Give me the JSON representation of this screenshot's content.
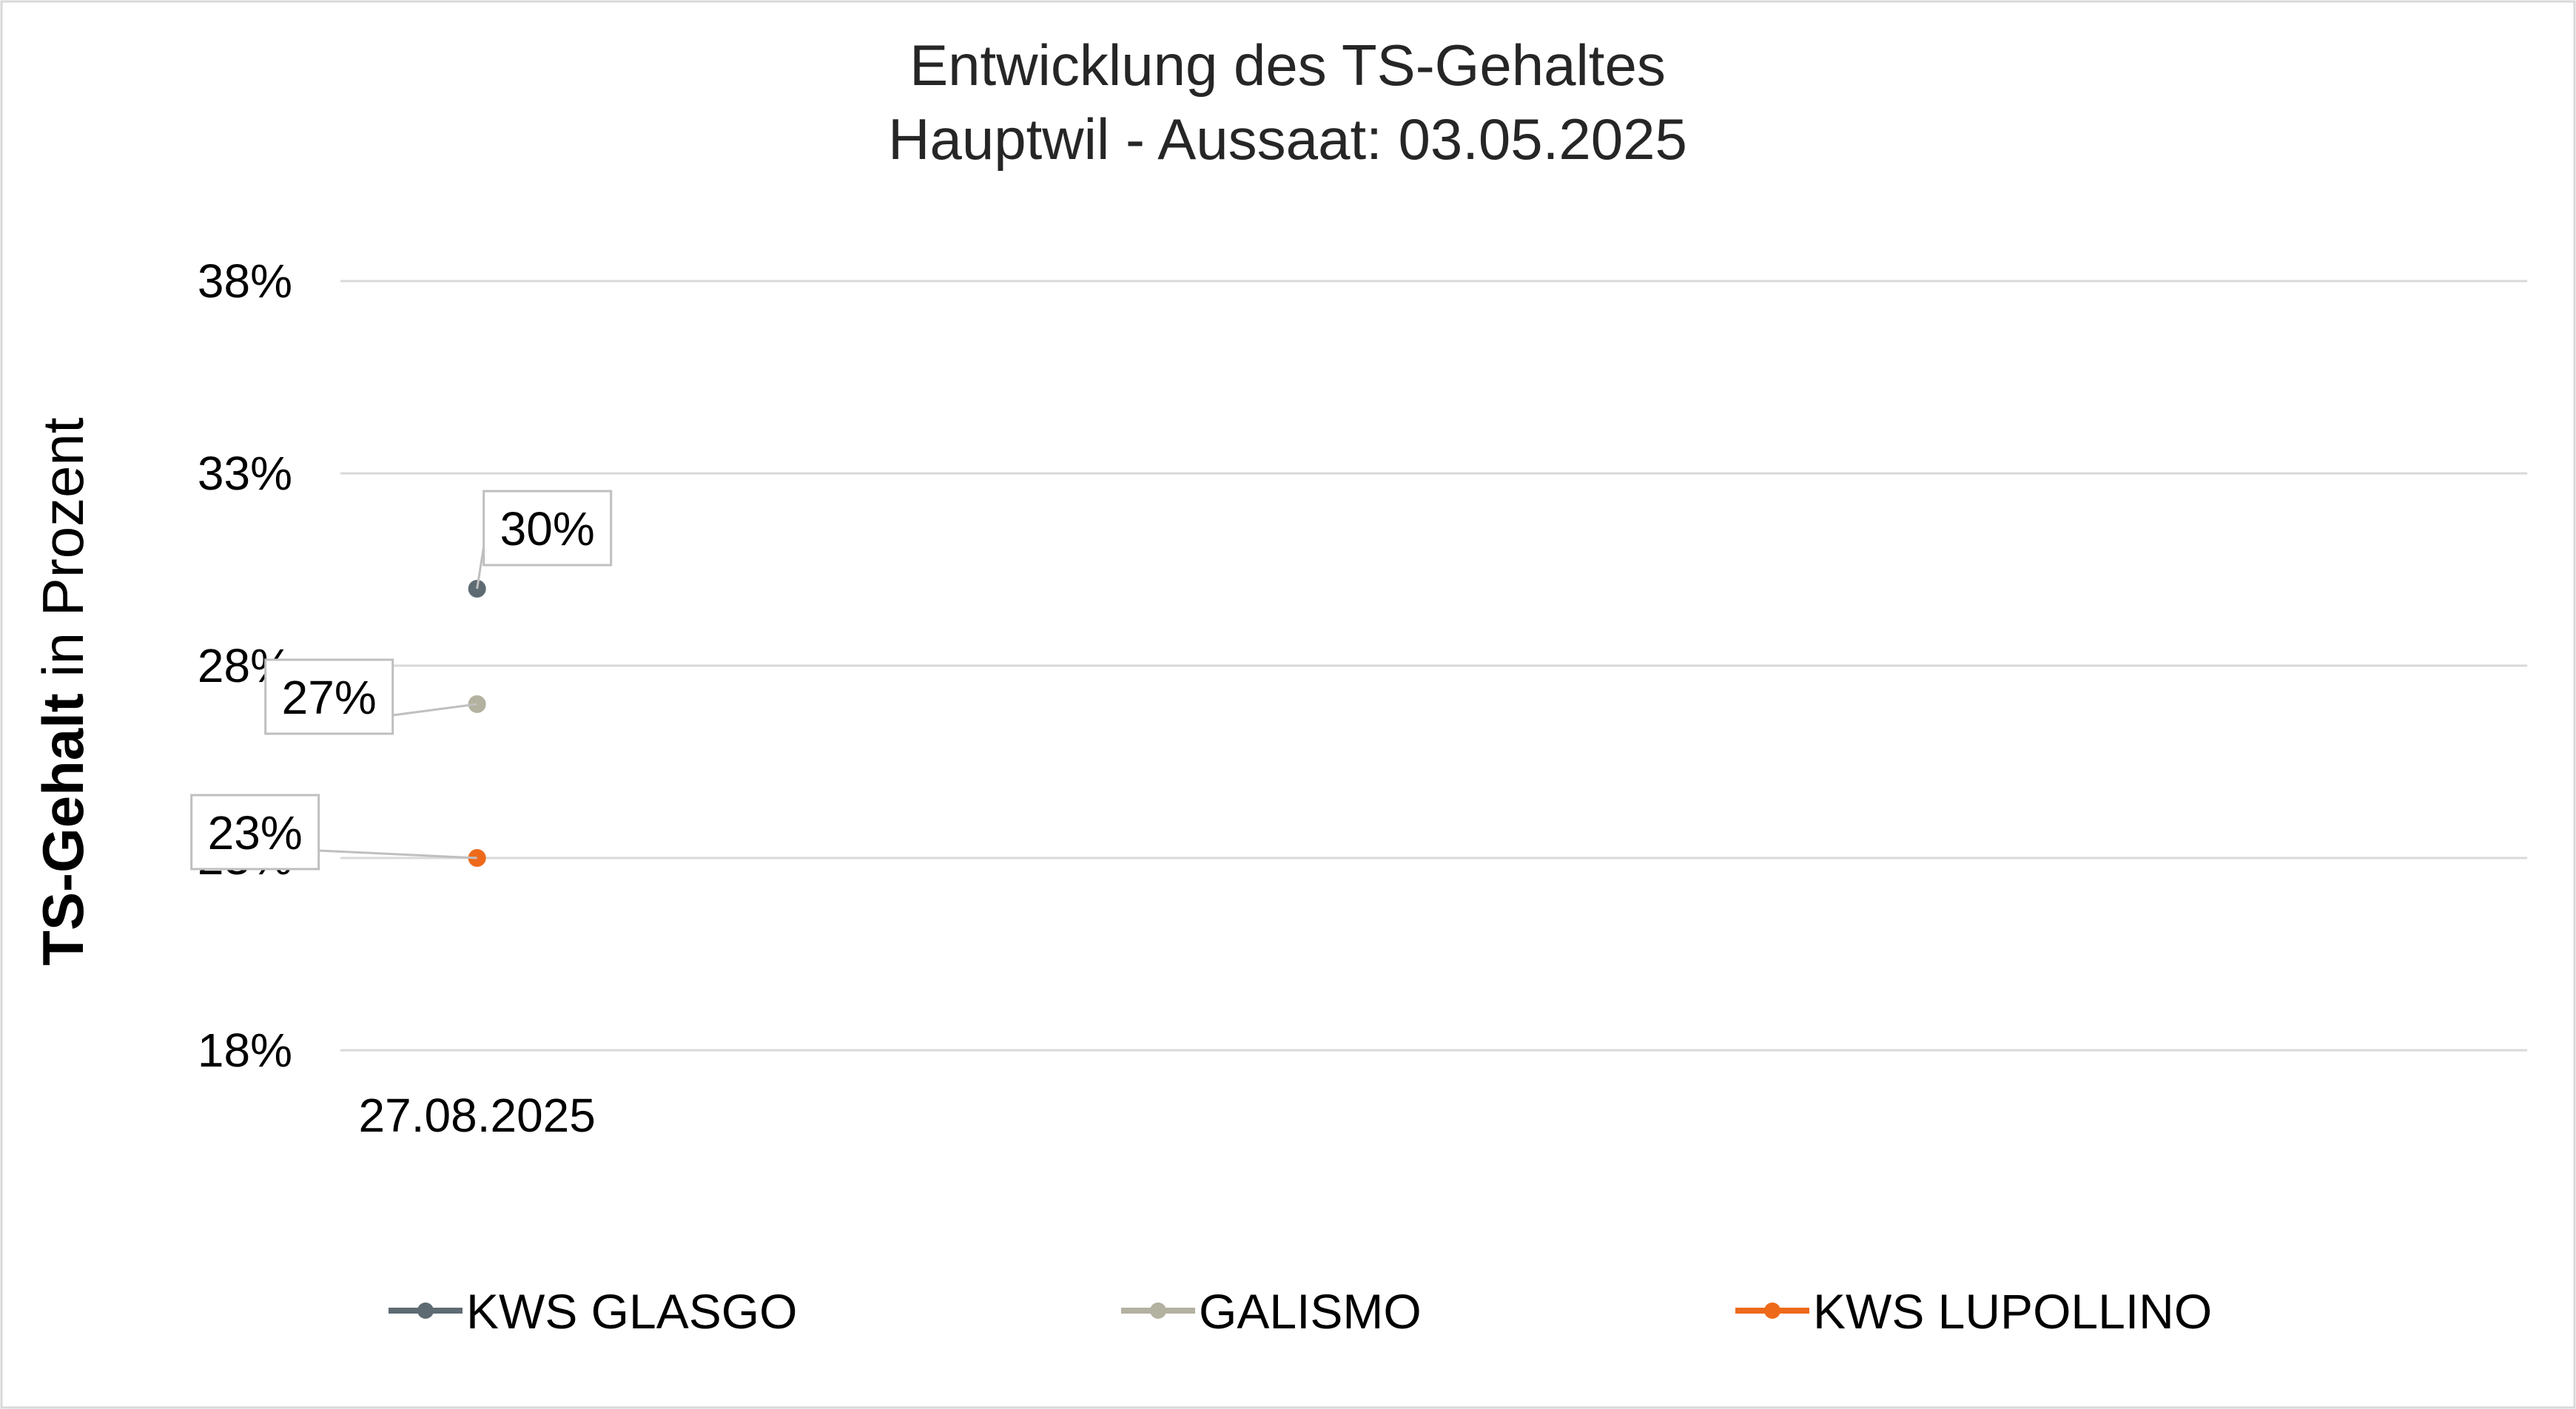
{
  "chart_data": {
    "type": "line",
    "title": "Entwicklung des TS-Gehaltes",
    "subtitle": "Hauptwil - Aussaat: 03.05.2025",
    "ylabel_bold": "TS-Gehalt",
    "ylabel_rest": " in Prozent",
    "xlabel": "",
    "x": [
      "27.08.2025"
    ],
    "ylim": [
      18,
      38
    ],
    "yticks": [
      {
        "value": 18,
        "label": "18%"
      },
      {
        "value": 23,
        "label": "23%"
      },
      {
        "value": 28,
        "label": "28%"
      },
      {
        "value": 33,
        "label": "33%"
      },
      {
        "value": 38,
        "label": "38%"
      }
    ],
    "grid": true,
    "legend_position": "bottom",
    "series": [
      {
        "name": "KWS GLASGO",
        "color": "#5f6b73",
        "values": [
          30
        ],
        "labels": [
          "30%"
        ]
      },
      {
        "name": "GALISMO",
        "color": "#b3b19f",
        "values": [
          27
        ],
        "labels": [
          "27%"
        ]
      },
      {
        "name": "KWS LUPOLLINO",
        "color": "#ee6a1a",
        "values": [
          23
        ],
        "labels": [
          "23%"
        ]
      }
    ]
  }
}
